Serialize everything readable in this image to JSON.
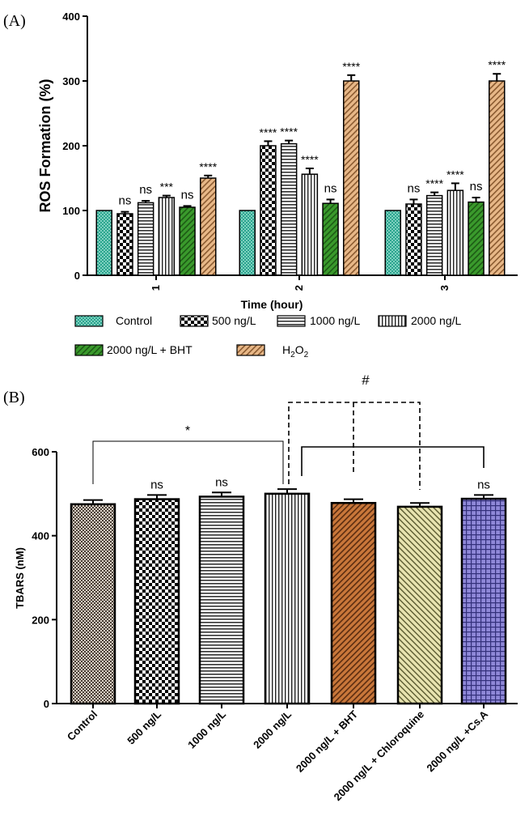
{
  "chart_data": [
    {
      "type": "bar",
      "panel_label": "(A)",
      "title": "",
      "xlabel": "Time (hour)",
      "ylabel": "ROS Formation (%)",
      "ylim": [
        0,
        400
      ],
      "yticks": [
        0,
        100,
        200,
        300,
        400
      ],
      "categories": [
        "1",
        "2",
        "3"
      ],
      "series": [
        {
          "name": "Control",
          "values": [
            100,
            100,
            100
          ],
          "errors": [
            0,
            0,
            0
          ],
          "annotations": [
            "",
            "",
            ""
          ],
          "color": "#2aa58e",
          "pattern": "dots"
        },
        {
          "name": "500 ng/L",
          "values": [
            95,
            200,
            110
          ],
          "errors": [
            3,
            7,
            7
          ],
          "annotations": [
            "ns",
            "****",
            "ns"
          ],
          "color": "#000000",
          "pattern": "checker"
        },
        {
          "name": "1000 ng/L",
          "values": [
            112,
            203,
            123
          ],
          "errors": [
            3,
            5,
            5
          ],
          "annotations": [
            "ns",
            "****",
            "****"
          ],
          "color": "#000000",
          "pattern": "hlines"
        },
        {
          "name": "2000 ng/L",
          "values": [
            120,
            156,
            131
          ],
          "errors": [
            3,
            9,
            11
          ],
          "annotations": [
            "***",
            "****",
            "****"
          ],
          "color": "#000000",
          "pattern": "vlines"
        },
        {
          "name": "2000 ng/L + BHT",
          "values": [
            105,
            111,
            113
          ],
          "errors": [
            2,
            6,
            7
          ],
          "annotations": [
            "ns",
            "ns",
            "ns"
          ],
          "color": "#3a9a2c",
          "pattern": "diag"
        },
        {
          "name_main": "H",
          "name_sub1": "2",
          "name_mid": "O",
          "name_sub2": "2",
          "values": [
            150,
            300,
            300
          ],
          "errors": [
            4,
            9,
            11
          ],
          "annotations": [
            "****",
            "****",
            "****"
          ],
          "color": "#d4a070",
          "pattern": "diag-tan"
        }
      ],
      "legend_position": "bottom"
    },
    {
      "type": "bar",
      "panel_label": "(B)",
      "title": "",
      "xlabel": "",
      "ylabel": "TBARS (nM)",
      "ylim": [
        0,
        600
      ],
      "yticks": [
        0,
        200,
        400,
        600
      ],
      "categories": [
        "Control",
        "500 ng/L",
        "1000 ng/L",
        "2000 ng/L",
        "2000 ng/L + BHT",
        "2000 ng/L + Chloroquine",
        "2000 ng/L +Cs.A"
      ],
      "values": [
        475,
        487,
        493,
        500,
        478,
        469,
        488
      ],
      "errors": [
        10,
        10,
        10,
        11,
        9,
        9,
        9
      ],
      "annotations": [
        "",
        "ns",
        "ns",
        "",
        "",
        "",
        "ns"
      ],
      "patterns": [
        "checker-small",
        "checker",
        "hlines",
        "vlines",
        "diag-brown",
        "diag-olive",
        "grid-blue"
      ],
      "bracket_labels": {
        "star": "*",
        "hash": "#"
      }
    }
  ]
}
